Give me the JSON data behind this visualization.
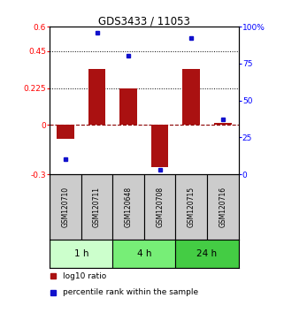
{
  "title": "GDS3433 / 11053",
  "samples": [
    "GSM120710",
    "GSM120711",
    "GSM120648",
    "GSM120708",
    "GSM120715",
    "GSM120716"
  ],
  "log10_ratio": [
    -0.085,
    0.34,
    0.225,
    -0.255,
    0.34,
    0.015
  ],
  "percentile_rank": [
    10,
    96,
    80,
    3,
    92,
    37
  ],
  "groups": [
    {
      "label": "1 h",
      "indices": [
        0,
        1
      ],
      "color": "#ccffcc"
    },
    {
      "label": "4 h",
      "indices": [
        2,
        3
      ],
      "color": "#77ee77"
    },
    {
      "label": "24 h",
      "indices": [
        4,
        5
      ],
      "color": "#44cc44"
    }
  ],
  "ylim_left": [
    -0.3,
    0.6
  ],
  "ylim_right": [
    0,
    100
  ],
  "yticks_left": [
    -0.3,
    0,
    0.225,
    0.45,
    0.6
  ],
  "ytick_labels_left": [
    "-0.3",
    "0",
    "0.225",
    "0.45",
    "0.6"
  ],
  "yticks_right": [
    0,
    25,
    50,
    75,
    100
  ],
  "ytick_labels_right": [
    "0",
    "25",
    "50",
    "75",
    "100%"
  ],
  "hlines_dotted": [
    0.45,
    0.225
  ],
  "bar_color": "#aa1111",
  "dot_color": "#1111cc",
  "bar_width": 0.55,
  "background_color": "#ffffff"
}
